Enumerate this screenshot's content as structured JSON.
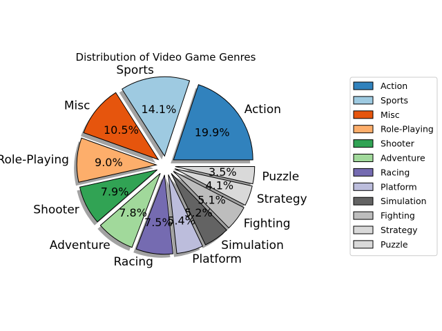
{
  "chart_data": {
    "type": "pie",
    "title": "Distribution of Video Game Genres",
    "categories": [
      "Action",
      "Sports",
      "Misc",
      "Role-Playing",
      "Shooter",
      "Adventure",
      "Racing",
      "Platform",
      "Simulation",
      "Fighting",
      "Strategy",
      "Puzzle"
    ],
    "values": [
      19.9,
      14.1,
      10.5,
      9.0,
      7.9,
      7.8,
      7.5,
      5.4,
      5.2,
      5.1,
      4.1,
      3.5
    ],
    "pct_labels": [
      "19.9%",
      "14.1%",
      "10.5%",
      "9.0%",
      "7.9%",
      "7.8%",
      "7.5%",
      "5.4%",
      "5.2%",
      "5.1%",
      "4.1%",
      "3.5%"
    ],
    "colors": [
      "#3182bd",
      "#9ecae1",
      "#e6550d",
      "#fdae6b",
      "#31a354",
      "#a1d99b",
      "#756bb1",
      "#bcbddc",
      "#636363",
      "#bdbdbd",
      "#d9d9d9",
      "#d9d9d9"
    ],
    "exploded": true,
    "shadow": true,
    "legend": {
      "position": "right",
      "entries": [
        "Action",
        "Sports",
        "Misc",
        "Role-Playing",
        "Shooter",
        "Adventure",
        "Racing",
        "Platform",
        "Simulation",
        "Fighting",
        "Strategy",
        "Puzzle"
      ]
    }
  }
}
